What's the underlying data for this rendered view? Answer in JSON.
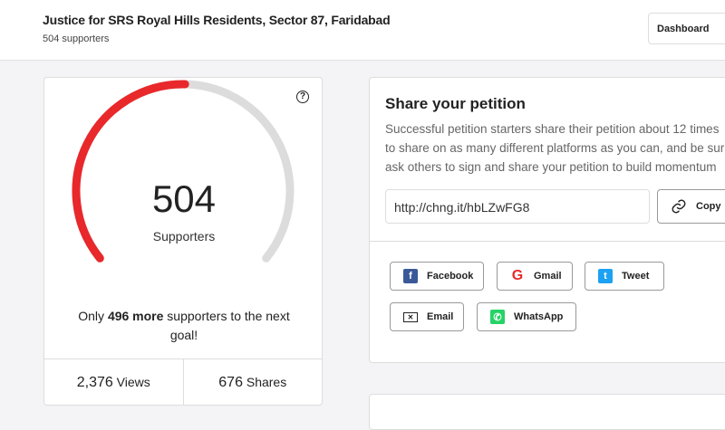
{
  "header": {
    "title": "Justice for SRS Royal Hills Residents, Sector 87, Faridabad",
    "supporters": "504 supporters",
    "dashboard": "Dashboard"
  },
  "progress": {
    "count": "504",
    "label": "Supporters",
    "goal_prefix": "Only ",
    "goal_bold": "496 more",
    "goal_suffix": " supporters to the next goal!",
    "fraction": 0.504,
    "fill_color": "#e8282b",
    "track_color": "#dcdcdc",
    "help": "?"
  },
  "stats": {
    "views_num": "2,376",
    "views_label": " Views",
    "shares_num": "676",
    "shares_label": " Shares"
  },
  "share": {
    "title": "Share your petition",
    "lines": [
      "Successful petition starters share their petition about 12 times",
      "to share on as many different platforms as you can, and be sur",
      "ask others to sign and share your petition to build momentum"
    ],
    "url": "http://chng.it/hbLZwFG8",
    "copy": "Copy",
    "buttons": {
      "facebook": "Facebook",
      "gmail": "Gmail",
      "tweet": "Tweet",
      "email": "Email",
      "whatsapp": "WhatsApp"
    }
  }
}
